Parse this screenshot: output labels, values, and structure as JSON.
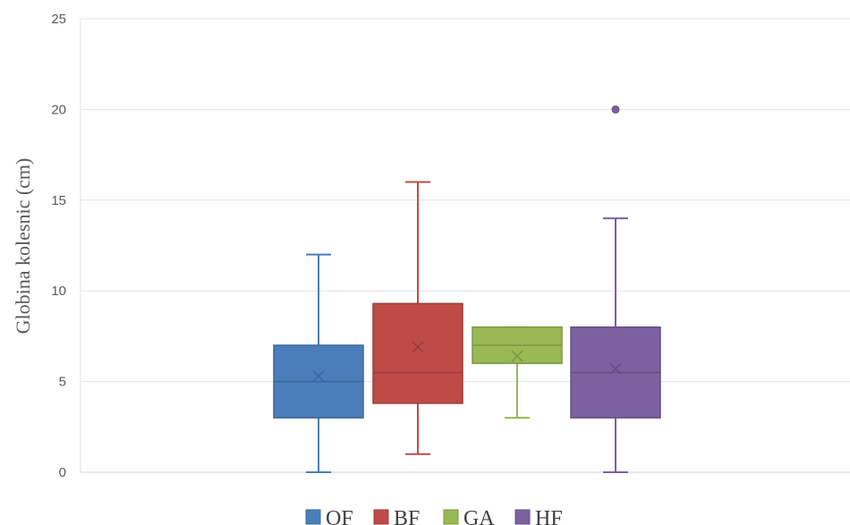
{
  "chart_data": {
    "type": "box",
    "title": "",
    "xlabel": "",
    "ylabel": "Globina kolesnic (cm)",
    "ylim": [
      0,
      25
    ],
    "yticks": [
      "0",
      "5",
      "10",
      "15",
      "20",
      "25"
    ],
    "grid": true,
    "legend_position": "bottom",
    "series": [
      {
        "name": "OF",
        "color": "#4a7ebb",
        "min": 0,
        "q1": 3,
        "median": 5,
        "q3": 7,
        "max": 12,
        "mean": 5.3,
        "outliers": []
      },
      {
        "name": "BF",
        "color": "#be4b48",
        "min": 1,
        "q1": 3.8,
        "median": 5.5,
        "q3": 9.3,
        "max": 16,
        "mean": 6.9,
        "outliers": []
      },
      {
        "name": "GA",
        "color": "#98b954",
        "min": 3,
        "q1": 6,
        "median": 7,
        "q3": 8,
        "max": 8,
        "mean": 6.4,
        "outliers": []
      },
      {
        "name": "HF",
        "color": "#7d60a0",
        "min": 0,
        "q1": 3,
        "median": 5.5,
        "q3": 8,
        "max": 14,
        "mean": 5.7,
        "outliers": [
          20
        ]
      }
    ]
  }
}
